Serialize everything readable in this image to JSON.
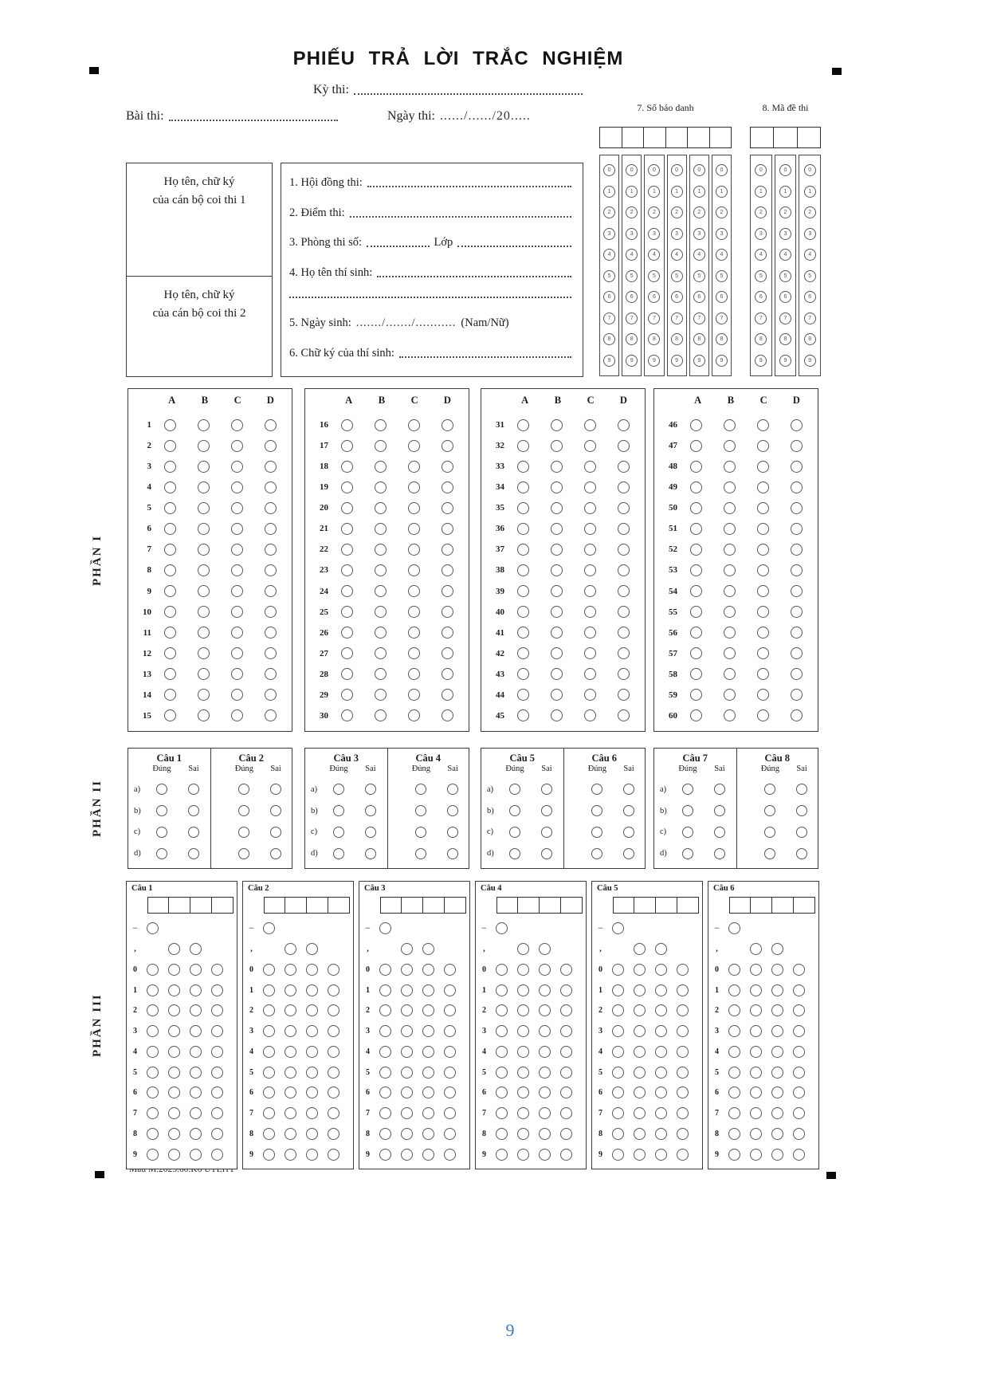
{
  "page": {
    "title": "PHIẾU TRẢ LỜI TRẮC NGHIỆM",
    "page_number": "9",
    "footer_code": "Mẫu M.2025.60.K6 UTEHY"
  },
  "header": {
    "ky_thi": "Kỳ thi:",
    "bai_thi": "Bài thi:",
    "ngay_thi": "Ngày thi:",
    "ngay_thi_value": "....../....../20.....",
    "sbd_title": "7. Số báo danh",
    "sbd_columns": 6,
    "made_title": "8. Mã đề thi",
    "made_columns": 3,
    "digits": [
      "0",
      "1",
      "2",
      "3",
      "4",
      "5",
      "6",
      "7",
      "8",
      "9"
    ]
  },
  "proctors": {
    "box1_line1": "Họ tên, chữ ký",
    "box1_line2": "của cán bộ coi thi 1",
    "box2_line1": "Họ tên, chữ ký",
    "box2_line2": "của cán bộ coi thi 2"
  },
  "info": {
    "line1": "1. Hội đồng thi:",
    "line2": "2. Điểm thi:",
    "line3a": "3. Phòng thi số:",
    "line3b": "Lớp",
    "line4": "4. Họ tên thí sinh:",
    "line5": "5. Ngày sinh:",
    "line5_dates": "......./......./...........",
    "line5_suffix": "(Nam/Nữ)",
    "line6": "6. Chữ ký của thí sinh:"
  },
  "part1": {
    "label": "PHẦN I",
    "choices": [
      "A",
      "B",
      "C",
      "D"
    ],
    "blocks": [
      {
        "from": 1,
        "to": 15
      },
      {
        "from": 16,
        "to": 30
      },
      {
        "from": 31,
        "to": 45
      },
      {
        "from": 46,
        "to": 60
      }
    ]
  },
  "part2": {
    "label": "PHẦN II",
    "questions": [
      "Câu 1",
      "Câu 2",
      "Câu 3",
      "Câu 4",
      "Câu 5",
      "Câu 6",
      "Câu 7",
      "Câu 8"
    ],
    "true_label": "Đúng",
    "false_label": "Sai",
    "rows": [
      "a)",
      "b)",
      "c)",
      "d)"
    ]
  },
  "part3": {
    "label": "PHẦN III",
    "questions": [
      "Câu 1",
      "Câu 2",
      "Câu 3",
      "Câu 4",
      "Câu 5",
      "Câu 6"
    ],
    "minus_label": "−",
    "comma_label": ",",
    "digits": [
      "0",
      "1",
      "2",
      "3",
      "4",
      "5",
      "6",
      "7",
      "8",
      "9"
    ],
    "write_cells": 4
  }
}
